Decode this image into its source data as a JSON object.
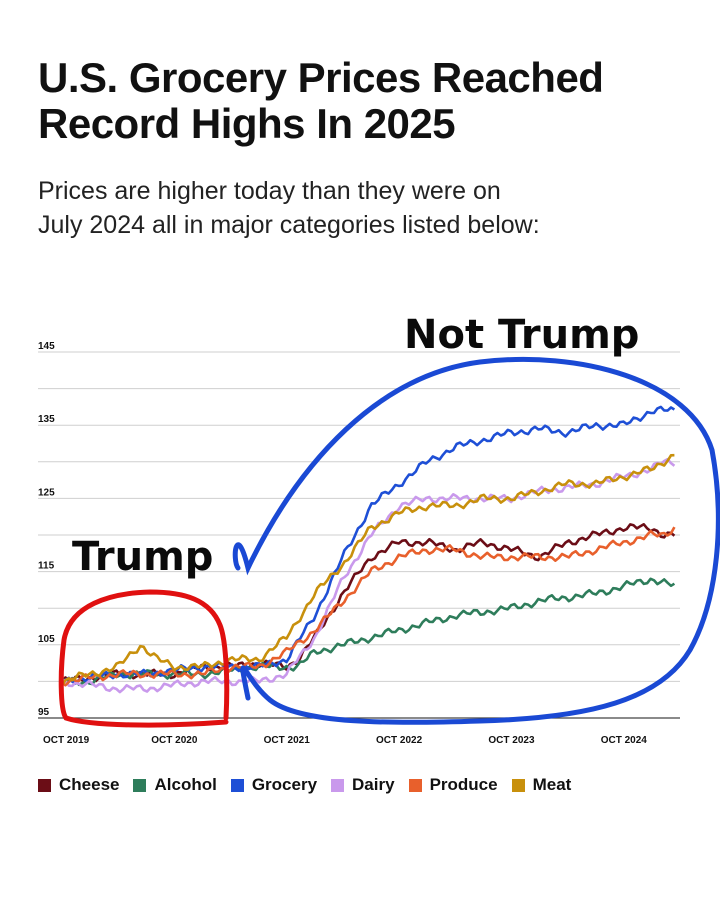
{
  "header": {
    "title_line1": "U.S. Grocery Prices Reached",
    "title_line2": "Record Highs In 2025",
    "subtitle_line1": "Prices are higher today than they were on",
    "subtitle_line2": "July 2024 all in major categories listed below:"
  },
  "annotations": {
    "left_label": "Trump",
    "right_label": "Not Trump",
    "left_color": "#e01010",
    "right_color": "#1a49d4"
  },
  "chart_data": {
    "type": "line",
    "title": "U.S. Grocery Prices Reached Record Highs In 2025",
    "xlabel": "",
    "ylabel": "",
    "ylim": [
      95,
      145
    ],
    "xlim": [
      2019.75,
      2025.25
    ],
    "y_ticks": [
      "95",
      "105",
      "115",
      "125",
      "135",
      "145"
    ],
    "x_ticks": [
      {
        "label": "OCT 2019",
        "x": 2019.75
      },
      {
        "label": "OCT 2020",
        "x": 2020.75
      },
      {
        "label": "OCT 2021",
        "x": 2021.75
      },
      {
        "label": "OCT 2022",
        "x": 2022.75
      },
      {
        "label": "OCT 2023",
        "x": 2023.75
      },
      {
        "label": "OCT 2024",
        "x": 2024.75
      }
    ],
    "grid": true,
    "legend_position": "bottom",
    "series": [
      {
        "name": "Cheese",
        "color": "#6b0d16",
        "points": [
          [
            2019.75,
            100
          ],
          [
            2020.0,
            100.5
          ],
          [
            2020.25,
            101
          ],
          [
            2020.5,
            101
          ],
          [
            2020.75,
            101
          ],
          [
            2021.0,
            102
          ],
          [
            2021.25,
            102
          ],
          [
            2021.5,
            102.5
          ],
          [
            2021.75,
            102
          ],
          [
            2021.85,
            103
          ],
          [
            2022.0,
            106
          ],
          [
            2022.25,
            112
          ],
          [
            2022.5,
            117
          ],
          [
            2022.75,
            119
          ],
          [
            2023.0,
            119
          ],
          [
            2023.25,
            118
          ],
          [
            2023.5,
            119
          ],
          [
            2023.75,
            118
          ],
          [
            2024.0,
            117
          ],
          [
            2024.25,
            119
          ],
          [
            2024.5,
            120
          ],
          [
            2024.75,
            121
          ],
          [
            2025.0,
            121
          ],
          [
            2025.1,
            120
          ],
          [
            2025.2,
            120
          ]
        ]
      },
      {
        "name": "Alcohol",
        "color": "#2e7d5b",
        "points": [
          [
            2019.75,
            100
          ],
          [
            2020.0,
            100
          ],
          [
            2020.25,
            101
          ],
          [
            2020.5,
            101
          ],
          [
            2020.75,
            101
          ],
          [
            2021.0,
            101
          ],
          [
            2021.25,
            101.5
          ],
          [
            2021.5,
            102
          ],
          [
            2021.75,
            102
          ],
          [
            2021.85,
            102
          ],
          [
            2022.0,
            104
          ],
          [
            2022.25,
            105
          ],
          [
            2022.5,
            106
          ],
          [
            2022.75,
            107
          ],
          [
            2023.0,
            108
          ],
          [
            2023.25,
            109
          ],
          [
            2023.5,
            109.5
          ],
          [
            2023.75,
            110
          ],
          [
            2024.0,
            111
          ],
          [
            2024.25,
            111.5
          ],
          [
            2024.5,
            112
          ],
          [
            2024.75,
            113
          ],
          [
            2025.0,
            114
          ],
          [
            2025.1,
            113.5
          ],
          [
            2025.2,
            113
          ]
        ]
      },
      {
        "name": "Grocery",
        "color": "#1e4fd6",
        "points": [
          [
            2019.75,
            100
          ],
          [
            2020.0,
            100.5
          ],
          [
            2020.25,
            101
          ],
          [
            2020.5,
            101
          ],
          [
            2020.75,
            101.5
          ],
          [
            2021.0,
            102
          ],
          [
            2021.25,
            102
          ],
          [
            2021.5,
            102
          ],
          [
            2021.75,
            103
          ],
          [
            2022.0,
            109
          ],
          [
            2022.25,
            117
          ],
          [
            2022.5,
            124
          ],
          [
            2022.75,
            127
          ],
          [
            2023.0,
            130
          ],
          [
            2023.25,
            132
          ],
          [
            2023.5,
            133
          ],
          [
            2023.75,
            134
          ],
          [
            2024.0,
            134.5
          ],
          [
            2024.25,
            134
          ],
          [
            2024.5,
            135
          ],
          [
            2024.75,
            135
          ],
          [
            2025.0,
            137
          ],
          [
            2025.1,
            137
          ],
          [
            2025.2,
            137
          ]
        ]
      },
      {
        "name": "Dairy",
        "color": "#c999ec",
        "points": [
          [
            2019.75,
            100
          ],
          [
            2020.0,
            99.5
          ],
          [
            2020.25,
            99
          ],
          [
            2020.5,
            99
          ],
          [
            2020.75,
            99.5
          ],
          [
            2021.0,
            100
          ],
          [
            2021.25,
            100
          ],
          [
            2021.5,
            100
          ],
          [
            2021.75,
            101
          ],
          [
            2022.0,
            106
          ],
          [
            2022.25,
            114
          ],
          [
            2022.5,
            120
          ],
          [
            2022.75,
            124
          ],
          [
            2023.0,
            125
          ],
          [
            2023.25,
            125
          ],
          [
            2023.5,
            125
          ],
          [
            2023.75,
            125
          ],
          [
            2024.0,
            126
          ],
          [
            2024.25,
            126.5
          ],
          [
            2024.5,
            127
          ],
          [
            2024.75,
            128
          ],
          [
            2025.0,
            129
          ],
          [
            2025.1,
            130
          ],
          [
            2025.2,
            130
          ]
        ]
      },
      {
        "name": "Produce",
        "color": "#e8602c",
        "points": [
          [
            2019.75,
            100
          ],
          [
            2020.0,
            100.5
          ],
          [
            2020.25,
            101
          ],
          [
            2020.5,
            101
          ],
          [
            2020.75,
            101
          ],
          [
            2021.0,
            101
          ],
          [
            2021.25,
            102
          ],
          [
            2021.5,
            102
          ],
          [
            2021.75,
            104
          ],
          [
            2022.0,
            107
          ],
          [
            2022.25,
            111
          ],
          [
            2022.5,
            115
          ],
          [
            2022.75,
            117
          ],
          [
            2023.0,
            118
          ],
          [
            2023.25,
            118
          ],
          [
            2023.5,
            117
          ],
          [
            2023.75,
            117
          ],
          [
            2024.0,
            117
          ],
          [
            2024.25,
            117
          ],
          [
            2024.5,
            118
          ],
          [
            2024.75,
            119
          ],
          [
            2025.0,
            120
          ],
          [
            2025.1,
            120
          ],
          [
            2025.2,
            121
          ]
        ]
      },
      {
        "name": "Meat",
        "color": "#c8900c",
        "points": [
          [
            2019.75,
            100
          ],
          [
            2020.0,
            101
          ],
          [
            2020.25,
            102
          ],
          [
            2020.45,
            105
          ],
          [
            2020.6,
            103
          ],
          [
            2020.75,
            102
          ],
          [
            2021.0,
            102
          ],
          [
            2021.25,
            103
          ],
          [
            2021.5,
            103
          ],
          [
            2021.75,
            106
          ],
          [
            2022.0,
            112
          ],
          [
            2022.25,
            116
          ],
          [
            2022.5,
            121
          ],
          [
            2022.75,
            123
          ],
          [
            2023.0,
            124
          ],
          [
            2023.25,
            124
          ],
          [
            2023.5,
            125
          ],
          [
            2023.75,
            125
          ],
          [
            2024.0,
            126
          ],
          [
            2024.25,
            127
          ],
          [
            2024.5,
            127
          ],
          [
            2024.75,
            128
          ],
          [
            2025.0,
            129
          ],
          [
            2025.1,
            130
          ],
          [
            2025.2,
            131
          ]
        ]
      }
    ]
  }
}
